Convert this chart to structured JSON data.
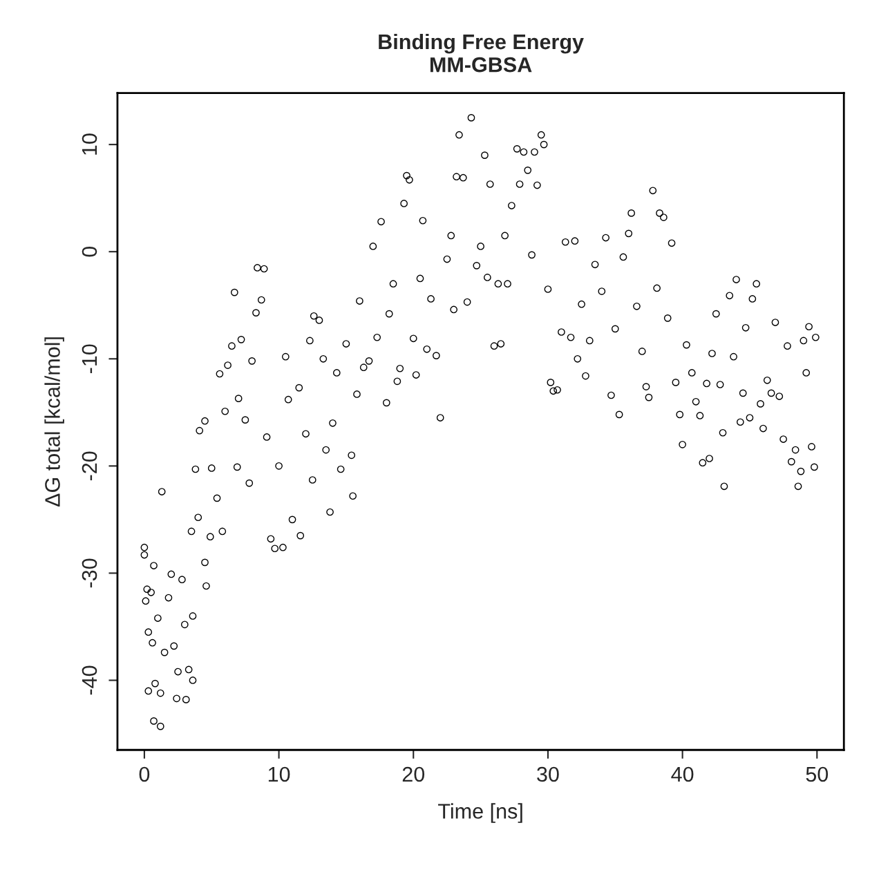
{
  "chart_data": {
    "type": "scatter",
    "title": "Binding Free Energy\nMM-GBSA",
    "xlabel": "Time [ns]",
    "ylabel": "ΔG total [kcal/mol]",
    "xlim": [
      -2,
      52
    ],
    "ylim": [
      -46.5,
      14.8
    ],
    "xticks": [
      0,
      10,
      20,
      30,
      40,
      50
    ],
    "yticks": [
      -40,
      -30,
      -20,
      -10,
      0,
      10
    ],
    "grid": false,
    "legend": false,
    "marker": "circle",
    "series": [
      {
        "color": "#000000",
        "x": [
          0,
          0,
          0.1,
          0.2,
          0.3,
          0.3,
          0.5,
          0.6,
          0.7,
          0.7,
          0.8,
          1,
          1.2,
          1.3,
          1.2,
          1.5,
          1.8,
          2,
          2.2,
          2.4,
          2.5,
          2.8,
          3,
          3.1,
          3.3,
          3.6,
          3.6,
          3.5,
          3.8,
          4,
          4.1,
          4.5,
          4.5,
          4.6,
          4.9,
          5,
          5.4,
          5.6,
          5.8,
          6,
          6.2,
          6.5,
          6.7,
          6.9,
          7,
          7.2,
          7.5,
          7.8,
          8,
          8.3,
          8.4,
          8.7,
          8.9,
          9.1,
          9.4,
          9.7,
          10,
          10.3,
          10.5,
          10.7,
          11,
          11.5,
          11.6,
          12,
          12.3,
          12.5,
          12.6,
          13,
          13.3,
          13.5,
          13.8,
          14,
          14.3,
          14.6,
          15,
          15.4,
          15.5,
          15.8,
          16,
          16.3,
          16.7,
          17,
          17.3,
          17.6,
          18,
          18.2,
          18.5,
          18.8,
          19,
          19.3,
          19.5,
          19.7,
          20,
          20.2,
          20.5,
          20.7,
          21,
          21.3,
          21.7,
          22,
          22.5,
          22.8,
          23,
          23.2,
          23.4,
          23.7,
          24,
          24.3,
          24.7,
          25,
          25.3,
          25.5,
          25.7,
          26,
          26.3,
          26.5,
          26.8,
          27,
          27.3,
          27.7,
          27.9,
          28.2,
          28.5,
          28.8,
          29,
          29.2,
          29.5,
          29.7,
          30,
          30.2,
          30.4,
          30.7,
          31,
          31.3,
          31.7,
          32,
          32.2,
          32.5,
          32.8,
          33.1,
          33.5,
          34,
          34.3,
          34.7,
          35,
          35.3,
          35.6,
          36,
          36.2,
          36.6,
          37,
          37.3,
          37.5,
          37.8,
          38.1,
          38.3,
          38.6,
          38.9,
          39.2,
          39.5,
          39.8,
          40,
          40.3,
          40.7,
          41,
          41.3,
          41.5,
          41.8,
          42,
          42.2,
          42.5,
          42.8,
          43,
          43.1,
          43.5,
          43.8,
          44,
          44.3,
          44.5,
          44.7,
          45,
          45.2,
          45.5,
          45.8,
          46,
          46.3,
          46.6,
          46.9,
          47.2,
          47.5,
          47.8,
          48.1,
          48.4,
          48.6,
          48.8,
          49,
          49.2,
          49.4,
          49.6,
          49.8,
          49.9
        ],
        "values": [
          -28.3,
          -27.6,
          -32.6,
          -31.5,
          -35.5,
          -41,
          -31.8,
          -36.5,
          -43.8,
          -29.3,
          -40.3,
          -34.2,
          -44.3,
          -22.4,
          -41.2,
          -37.4,
          -32.3,
          -30.1,
          -36.8,
          -41.7,
          -39.2,
          -30.6,
          -34.8,
          -41.8,
          -39,
          -34,
          -40,
          -26.1,
          -20.3,
          -24.8,
          -16.7,
          -15.8,
          -29,
          -31.2,
          -26.6,
          -20.2,
          -23,
          -11.4,
          -26.1,
          -14.9,
          -10.6,
          -8.8,
          -3.8,
          -20.1,
          -13.7,
          -8.2,
          -15.7,
          -21.6,
          -10.2,
          -5.7,
          -1.5,
          -4.5,
          -1.6,
          -17.3,
          -26.8,
          -27.7,
          -20,
          -27.6,
          -9.8,
          -13.8,
          -25,
          -12.7,
          -26.5,
          -17,
          -8.3,
          -21.3,
          -6,
          -6.4,
          -10,
          -18.5,
          -24.3,
          -16,
          -11.3,
          -20.3,
          -8.6,
          -19,
          -22.8,
          -13.3,
          -4.6,
          -10.8,
          -10.2,
          0.5,
          -8,
          2.8,
          -14.1,
          -5.8,
          -3,
          -12.1,
          -10.9,
          4.5,
          7.1,
          6.7,
          -8.1,
          -11.5,
          -2.5,
          2.9,
          -9.1,
          -4.4,
          -9.7,
          -15.5,
          -0.7,
          1.5,
          -5.4,
          7,
          10.9,
          6.9,
          -4.7,
          12.5,
          -1.3,
          0.5,
          9,
          -2.4,
          6.3,
          -8.8,
          -3,
          -8.6,
          1.5,
          -3,
          4.3,
          9.6,
          6.3,
          9.3,
          7.6,
          -0.3,
          9.3,
          6.2,
          10.9,
          10,
          -3.5,
          -12.2,
          -13,
          -12.9,
          -7.5,
          0.9,
          -8,
          1,
          -10,
          -4.9,
          -11.6,
          -8.3,
          -1.2,
          -3.7,
          1.3,
          -13.4,
          -7.2,
          -15.2,
          -0.5,
          1.7,
          3.6,
          -5.1,
          -9.3,
          -12.6,
          -13.6,
          5.7,
          -3.4,
          3.6,
          3.2,
          -6.2,
          0.8,
          -12.2,
          -15.2,
          -18,
          -8.7,
          -11.3,
          -14,
          -15.3,
          -19.7,
          -12.3,
          -19.3,
          -9.5,
          -5.8,
          -12.4,
          -16.9,
          -21.9,
          -4.1,
          -9.8,
          -2.6,
          -15.9,
          -13.2,
          -7.1,
          -15.5,
          -4.4,
          -3,
          -14.2,
          -16.5,
          -12,
          -13.2,
          -6.6,
          -13.5,
          -17.5,
          -8.8,
          -19.6,
          -18.5,
          -21.9,
          -20.5,
          -8.3,
          -11.3,
          -7,
          -18.2,
          -20.1,
          -8
        ]
      }
    ]
  }
}
